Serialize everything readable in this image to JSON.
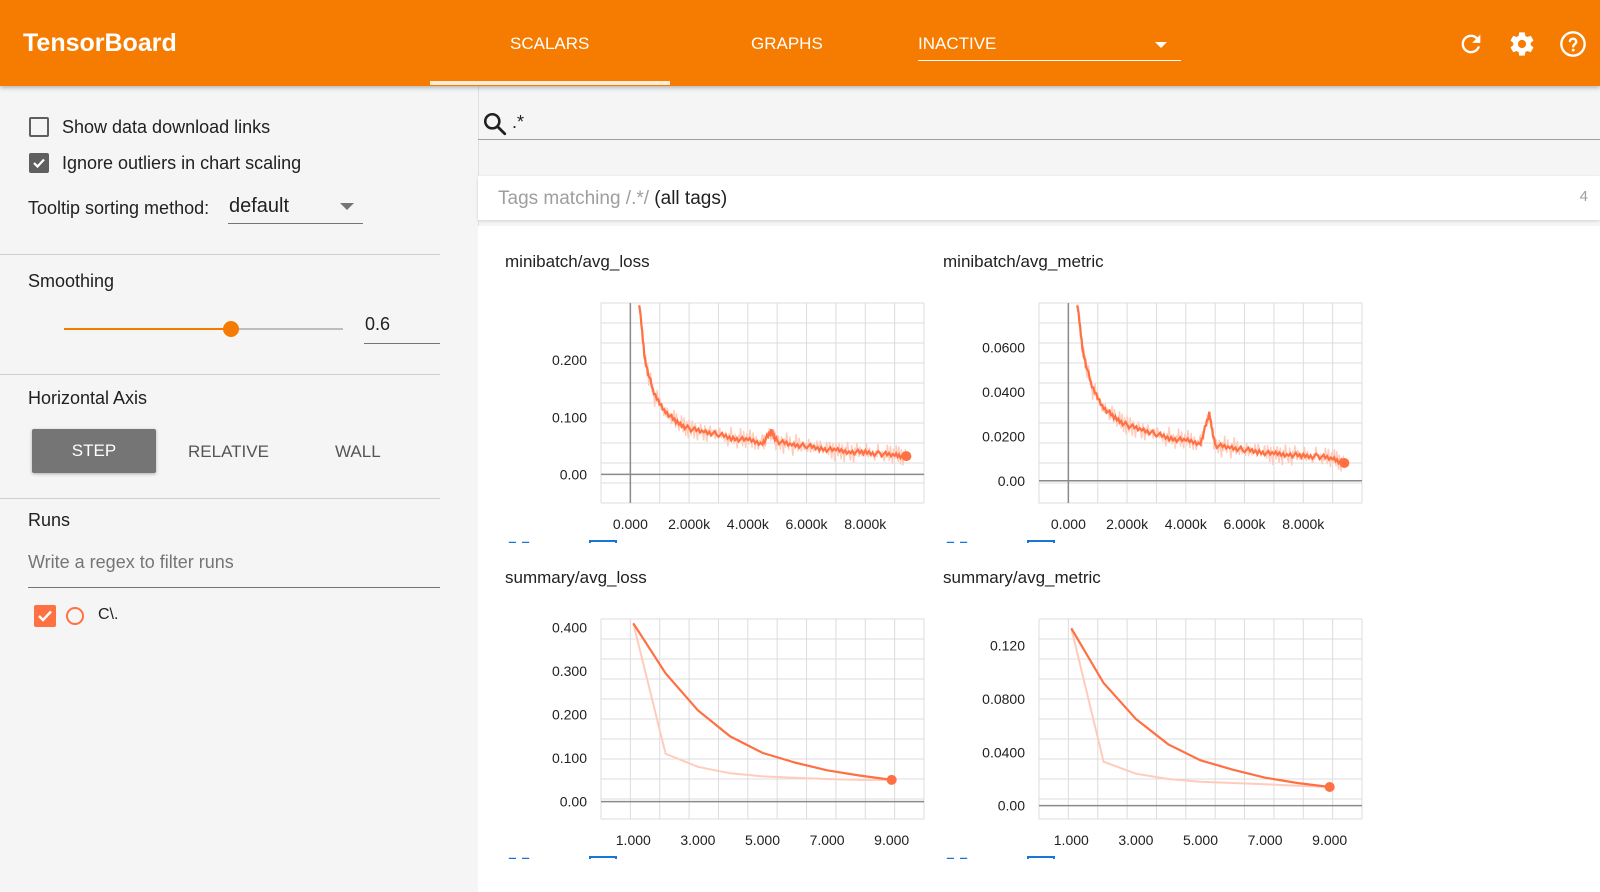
{
  "header": {
    "brand": "TensorBoard",
    "tabs": [
      {
        "label": "SCALARS",
        "active": true
      },
      {
        "label": "GRAPHS",
        "active": false
      }
    ],
    "inactive_select": "INACTIVE",
    "icons": [
      "refresh-icon",
      "settings-icon",
      "help-icon"
    ],
    "accent_color": "#f57c00"
  },
  "sidebar": {
    "show_download_links": {
      "label": "Show data download links",
      "checked": false
    },
    "ignore_outliers": {
      "label": "Ignore outliers in chart scaling",
      "checked": true
    },
    "tooltip_sorting": {
      "label": "Tooltip sorting method:",
      "value": "default"
    },
    "smoothing": {
      "label": "Smoothing",
      "value": "0.6",
      "fraction": 0.6
    },
    "horizontal_axis": {
      "label": "Horizontal Axis",
      "options": [
        "STEP",
        "RELATIVE",
        "WALL"
      ],
      "selected": "STEP"
    },
    "runs": {
      "label": "Runs",
      "filter_placeholder": "Write a regex to filter runs",
      "items": [
        {
          "name": "C\\.",
          "checked": true,
          "color": "#ff7043"
        }
      ]
    }
  },
  "main": {
    "search_value": ".*",
    "tags_header": {
      "prefix": "Tags matching ",
      "pattern": "/.*/",
      "suffix": " (all tags)",
      "count": "4"
    }
  },
  "chart_data": [
    {
      "type": "line",
      "title": "minibatch/avg_loss",
      "x_ticks": [
        "0.000",
        "2.000k",
        "4.000k",
        "6.000k",
        "8.000k"
      ],
      "y_ticks": [
        "0.00",
        "0.100",
        "0.200"
      ],
      "xlim": [
        -1000,
        10000
      ],
      "ylim": [
        -0.05,
        0.3
      ],
      "series": [
        {
          "color": "#ff7043",
          "x": [
            300,
            500,
            800,
            1200,
            1600,
            2000,
            2500,
            3000,
            3500,
            4000,
            4500,
            4800,
            5000,
            5500,
            6000,
            6500,
            7000,
            7500,
            8000,
            8500,
            9000,
            9400
          ],
          "y": [
            0.3,
            0.2,
            0.14,
            0.11,
            0.09,
            0.08,
            0.075,
            0.07,
            0.063,
            0.06,
            0.055,
            0.075,
            0.058,
            0.052,
            0.05,
            0.045,
            0.042,
            0.04,
            0.038,
            0.036,
            0.034,
            0.032
          ]
        }
      ]
    },
    {
      "type": "line",
      "title": "minibatch/avg_metric",
      "x_ticks": [
        "0.000",
        "2.000k",
        "4.000k",
        "6.000k",
        "8.000k"
      ],
      "y_ticks": [
        "0.00",
        "0.0200",
        "0.0400",
        "0.0600"
      ],
      "xlim": [
        -1000,
        10000
      ],
      "ylim": [
        -0.01,
        0.08
      ],
      "series": [
        {
          "color": "#ff7043",
          "x": [
            300,
            500,
            800,
            1200,
            1600,
            2000,
            2500,
            3000,
            3500,
            4000,
            4500,
            4800,
            5000,
            5500,
            6000,
            6500,
            7000,
            7500,
            8000,
            8500,
            9000,
            9400
          ],
          "y": [
            0.08,
            0.058,
            0.042,
            0.033,
            0.028,
            0.025,
            0.023,
            0.021,
            0.019,
            0.018,
            0.017,
            0.03,
            0.016,
            0.015,
            0.014,
            0.013,
            0.012,
            0.012,
            0.011,
            0.011,
            0.01,
            0.008
          ]
        }
      ]
    },
    {
      "type": "line",
      "title": "summary/avg_loss",
      "x_ticks": [
        "1.000",
        "3.000",
        "5.000",
        "7.000",
        "9.000"
      ],
      "y_ticks": [
        "0.00",
        "0.100",
        "0.200",
        "0.300",
        "0.400"
      ],
      "xlim": [
        0,
        10
      ],
      "ylim": [
        -0.04,
        0.42
      ],
      "series": [
        {
          "color": "#ff7043",
          "x": [
            1,
            2,
            3,
            4,
            5,
            6,
            7,
            8,
            9
          ],
          "y": [
            0.41,
            0.295,
            0.21,
            0.15,
            0.112,
            0.09,
            0.072,
            0.06,
            0.05
          ]
        },
        {
          "color": "#ffccbc",
          "x": [
            1,
            2,
            3,
            4,
            5,
            6,
            7,
            8,
            9
          ],
          "y": [
            0.41,
            0.11,
            0.08,
            0.065,
            0.058,
            0.055,
            0.052,
            0.05,
            0.05
          ]
        }
      ]
    },
    {
      "type": "line",
      "title": "summary/avg_metric",
      "x_ticks": [
        "1.000",
        "3.000",
        "5.000",
        "7.000",
        "9.000"
      ],
      "y_ticks": [
        "0.00",
        "0.0400",
        "0.0800",
        "0.120"
      ],
      "xlim": [
        0,
        10
      ],
      "ylim": [
        -0.01,
        0.14
      ],
      "series": [
        {
          "color": "#ff7043",
          "x": [
            1,
            2,
            3,
            4,
            5,
            6,
            7,
            8,
            9
          ],
          "y": [
            0.133,
            0.092,
            0.065,
            0.046,
            0.034,
            0.027,
            0.021,
            0.017,
            0.014
          ]
        },
        {
          "color": "#ffccbc",
          "x": [
            1,
            2,
            3,
            4,
            5,
            6,
            7,
            8,
            9
          ],
          "y": [
            0.133,
            0.033,
            0.024,
            0.02,
            0.018,
            0.017,
            0.016,
            0.015,
            0.014
          ]
        }
      ]
    }
  ]
}
